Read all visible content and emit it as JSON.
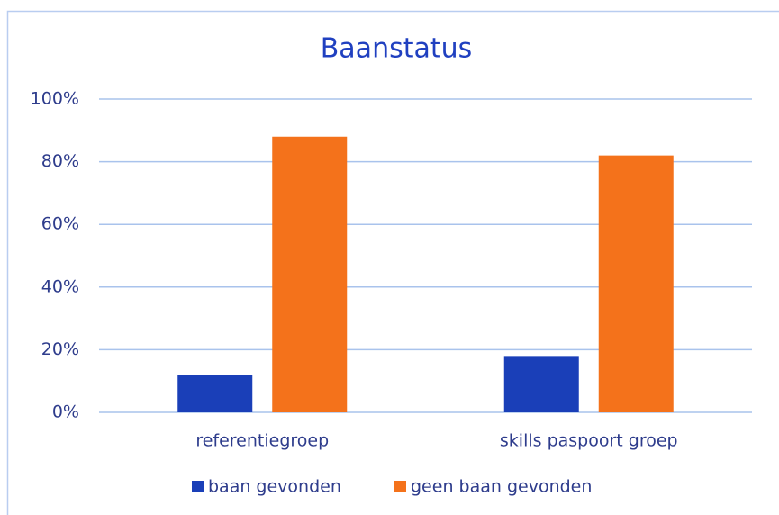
{
  "chart_data": {
    "type": "bar",
    "title": "Baanstatus",
    "categories": [
      "referentiegroep",
      "skills paspoort groep"
    ],
    "series": [
      {
        "name": "baan gevonden",
        "color": "#1a3fb8",
        "values": [
          12,
          18
        ]
      },
      {
        "name": "geen baan gevonden",
        "color": "#f4721b",
        "values": [
          88,
          82
        ]
      }
    ],
    "ylim": [
      0,
      100
    ],
    "yticks": [
      {
        "value": 0,
        "label": "0%"
      },
      {
        "value": 20,
        "label": "20%"
      },
      {
        "value": 40,
        "label": "40%"
      },
      {
        "value": 60,
        "label": "60%"
      },
      {
        "value": 80,
        "label": "80%"
      },
      {
        "value": 100,
        "label": "100%"
      }
    ],
    "grid": true,
    "legend": "bottom"
  }
}
